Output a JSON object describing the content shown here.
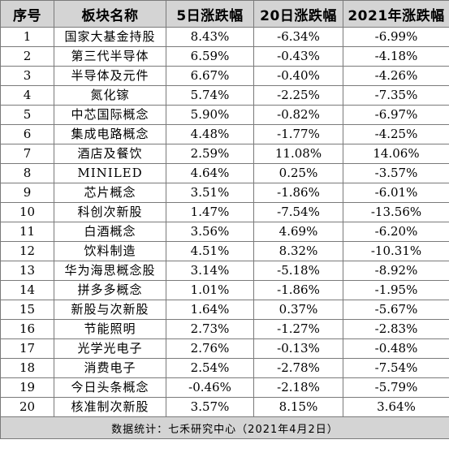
{
  "table": {
    "headers": [
      "序号",
      "板块名称",
      "5日涨跌幅",
      "20日涨跌幅",
      "2021年涨跌幅"
    ],
    "rows": [
      {
        "no": "1",
        "name": "国家大基金持股",
        "d5": "8.43%",
        "d20": "-6.34%",
        "ytd": "-6.99%"
      },
      {
        "no": "2",
        "name": "第三代半导体",
        "d5": "6.59%",
        "d20": "-0.43%",
        "ytd": "-4.18%"
      },
      {
        "no": "3",
        "name": "半导体及元件",
        "d5": "6.67%",
        "d20": "-0.40%",
        "ytd": "-4.26%"
      },
      {
        "no": "4",
        "name": "氮化镓",
        "d5": "5.74%",
        "d20": "-2.25%",
        "ytd": "-7.35%"
      },
      {
        "no": "5",
        "name": "中芯国际概念",
        "d5": "5.90%",
        "d20": "-0.82%",
        "ytd": "-6.97%"
      },
      {
        "no": "6",
        "name": "集成电路概念",
        "d5": "4.48%",
        "d20": "-1.77%",
        "ytd": "-4.25%"
      },
      {
        "no": "7",
        "name": "酒店及餐饮",
        "d5": "2.59%",
        "d20": "11.08%",
        "ytd": "14.06%"
      },
      {
        "no": "8",
        "name": "MINILED",
        "d5": "4.64%",
        "d20": "0.25%",
        "ytd": "-3.57%"
      },
      {
        "no": "9",
        "name": "芯片概念",
        "d5": "3.51%",
        "d20": "-1.86%",
        "ytd": "-6.01%"
      },
      {
        "no": "10",
        "name": "科创次新股",
        "d5": "1.47%",
        "d20": "-7.54%",
        "ytd": "-13.56%"
      },
      {
        "no": "11",
        "name": "白酒概念",
        "d5": "3.56%",
        "d20": "4.69%",
        "ytd": "-6.20%"
      },
      {
        "no": "12",
        "name": "饮料制造",
        "d5": "4.51%",
        "d20": "8.32%",
        "ytd": "-10.31%"
      },
      {
        "no": "13",
        "name": "华为海思概念股",
        "d5": "3.14%",
        "d20": "-5.18%",
        "ytd": "-8.92%"
      },
      {
        "no": "14",
        "name": "拼多多概念",
        "d5": "1.01%",
        "d20": "-1.86%",
        "ytd": "-1.95%"
      },
      {
        "no": "15",
        "name": "新股与次新股",
        "d5": "1.64%",
        "d20": "0.37%",
        "ytd": "-5.67%"
      },
      {
        "no": "16",
        "name": "节能照明",
        "d5": "2.73%",
        "d20": "-1.27%",
        "ytd": "-2.83%"
      },
      {
        "no": "17",
        "name": "光学光电子",
        "d5": "2.76%",
        "d20": "-0.13%",
        "ytd": "-0.48%"
      },
      {
        "no": "18",
        "name": "消费电子",
        "d5": "2.54%",
        "d20": "-2.78%",
        "ytd": "-7.54%"
      },
      {
        "no": "19",
        "name": "今日头条概念",
        "d5": "-0.46%",
        "d20": "-2.18%",
        "ytd": "-5.79%"
      },
      {
        "no": "20",
        "name": "核准制次新股",
        "d5": "3.57%",
        "d20": "8.15%",
        "ytd": "3.64%"
      }
    ],
    "footer": "数据统计：七禾研究中心（2021年4月2日）"
  }
}
